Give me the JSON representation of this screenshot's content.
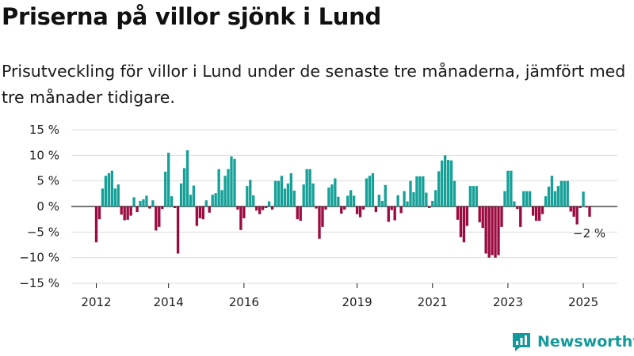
{
  "title": "Priserna på villor sjönk i Lund",
  "subtitle": "Prisutveckling för villor i Lund under de senaste tre månaderna, jämfört med tre månader tidigare.",
  "brand": "Newsworthy",
  "colors": {
    "positive": "#16a198",
    "negative": "#9b0b3f",
    "grid": "#dddddd",
    "axis": "#222222",
    "brand": "#139a9a"
  },
  "chart_data": {
    "type": "bar",
    "ylim": [
      -15,
      15
    ],
    "yticks": [
      15,
      10,
      5,
      0,
      -5,
      -10,
      -15
    ],
    "ytick_labels": [
      "15 %",
      "10 %",
      "5 %",
      "0 %",
      "−5 %",
      "−10 %",
      "−15 %"
    ],
    "xtick_labels": [
      "2012",
      "2014",
      "2016",
      "2019",
      "2021",
      "2023",
      "2025"
    ],
    "last_label": "−2 %",
    "series": [
      {
        "values": [
          -7,
          -2.5,
          3.5,
          6,
          6.5,
          7,
          3.5,
          4.3,
          -1.6,
          -2.7,
          -2.6,
          -1.8,
          1.8,
          -1.1,
          1.1,
          1.4,
          2.1,
          -0.4,
          1.2,
          -4.7,
          -4,
          -0.5,
          6.8,
          10.5,
          2,
          -0.3,
          -9.2,
          4.5,
          7.5,
          11,
          2.3,
          4.1,
          -3.8,
          -2.3,
          -2.5,
          1.2,
          -1.2,
          2.3,
          2.6,
          7.3,
          3.2,
          6,
          7.3,
          9.8,
          9.3,
          -0.6,
          -4.6,
          -2.3,
          4,
          5.2,
          2.2,
          -0.8,
          -1.5,
          -0.7,
          -0.3,
          1,
          -0.6,
          5,
          5,
          6,
          3.5,
          4.5,
          6.5,
          3.1,
          -2.5,
          -2.8,
          4.3,
          7.3,
          7.3,
          4.5,
          -0.4,
          -6.3,
          -4,
          -0.6,
          3.7,
          4.3,
          5.5,
          1.9,
          -1.4,
          -0.6,
          2.1,
          3.2,
          2.1,
          -1.5,
          -2.1,
          -0.6,
          5.5,
          6,
          6.5,
          -1.1,
          2.3,
          1.1,
          4.2,
          -3,
          -0.7,
          -2.7,
          2.2,
          -1.3,
          3,
          1,
          5,
          2.8,
          5.9,
          5.9,
          5.9,
          2.7,
          -0.3,
          1.1,
          3.2,
          6.9,
          9,
          10,
          9.1,
          9,
          5,
          -2.6,
          -6,
          -7,
          -3.8,
          4,
          4,
          4,
          -3.1,
          -4.2,
          -9.2,
          -10,
          -9.5,
          -10,
          -9.5,
          -4,
          3,
          7,
          7,
          1,
          -0.5,
          -4,
          3,
          3,
          3,
          -1.8,
          -2.8,
          -2.8,
          -1.5,
          2,
          3.9,
          6,
          3,
          4,
          5,
          5,
          5,
          -1,
          -2,
          -3.5,
          -0.3,
          2.9,
          -0.2,
          -2
        ]
      }
    ]
  }
}
